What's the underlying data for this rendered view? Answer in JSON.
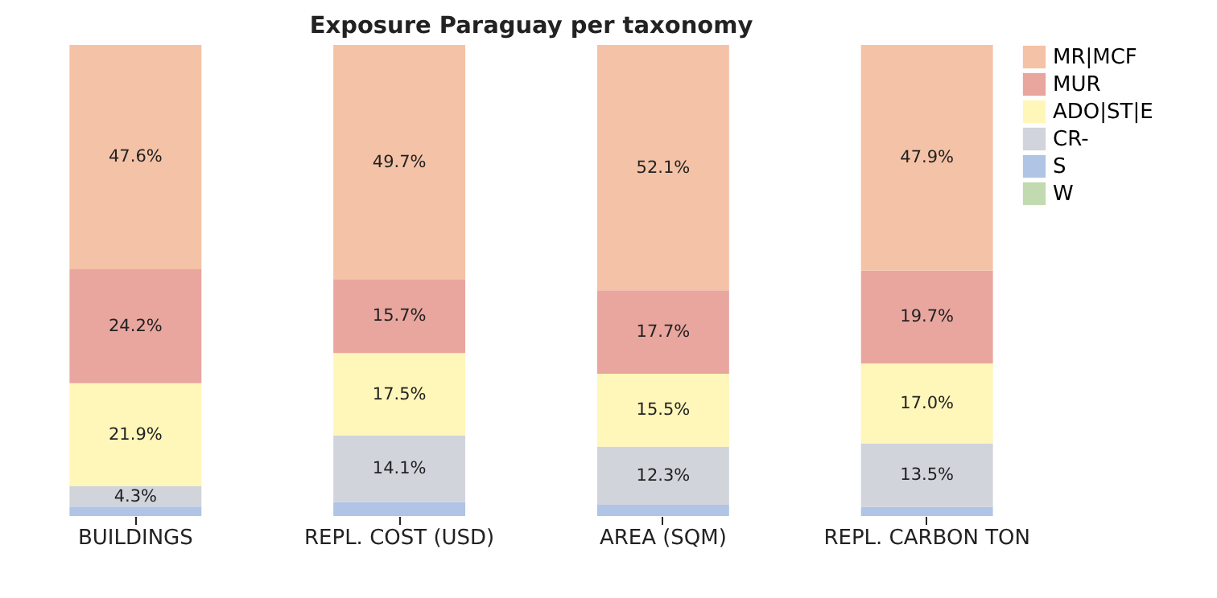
{
  "chart_data": {
    "type": "bar",
    "stacked": true,
    "title": "Exposure Paraguay per taxonomy",
    "categories": [
      "BUILDINGS",
      "REPL. COST (USD)",
      "AREA (SQM)",
      "REPL. CARBON TON"
    ],
    "ylim": [
      0,
      100
    ],
    "tick_labels": "x",
    "grid": false,
    "legend": "top right",
    "series": [
      {
        "name": "W",
        "color": "#c2dab0",
        "values": [
          0,
          0,
          0,
          0
        ],
        "value_labels": [
          null,
          null,
          null,
          null
        ]
      },
      {
        "name": "S",
        "color": "#b0c4e6",
        "values": [
          2.0,
          3.0,
          2.4,
          1.9
        ],
        "value_labels": [
          null,
          null,
          null,
          null
        ]
      },
      {
        "name": "CR-",
        "color": "#d1d4db",
        "values": [
          4.3,
          14.1,
          12.3,
          13.5
        ],
        "value_labels": [
          "4.3%",
          "14.1%",
          "12.3%",
          "13.5%"
        ]
      },
      {
        "name": "ADO|ST|E",
        "color": "#fff6b9",
        "values": [
          21.9,
          17.5,
          15.5,
          17.0
        ],
        "value_labels": [
          "21.9%",
          "17.5%",
          "15.5%",
          "17.0%"
        ]
      },
      {
        "name": "MUR",
        "color": "#e8a69f",
        "values": [
          24.2,
          15.7,
          17.7,
          19.7
        ],
        "value_labels": [
          "24.2%",
          "15.7%",
          "17.7%",
          "19.7%"
        ]
      },
      {
        "name": "MR|MCF",
        "color": "#f4c2a6",
        "values": [
          47.6,
          49.7,
          52.1,
          47.9
        ],
        "value_labels": [
          "47.6%",
          "49.7%",
          "52.1%",
          "47.9%"
        ]
      }
    ]
  }
}
